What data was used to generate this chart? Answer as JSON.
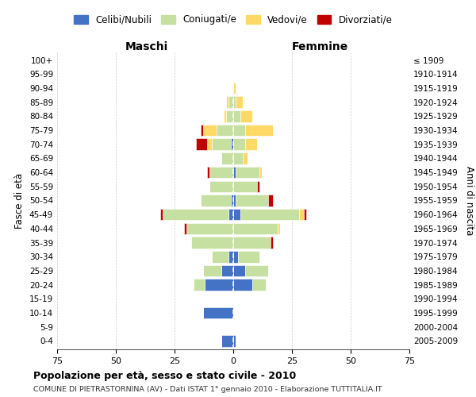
{
  "age_groups": [
    "0-4",
    "5-9",
    "10-14",
    "15-19",
    "20-24",
    "25-29",
    "30-34",
    "35-39",
    "40-44",
    "45-49",
    "50-54",
    "55-59",
    "60-64",
    "65-69",
    "70-74",
    "75-79",
    "80-84",
    "85-89",
    "90-94",
    "95-99",
    "100+"
  ],
  "birth_years": [
    "2005-2009",
    "2000-2004",
    "1995-1999",
    "1990-1994",
    "1985-1989",
    "1980-1984",
    "1975-1979",
    "1970-1974",
    "1965-1969",
    "1960-1964",
    "1955-1959",
    "1950-1954",
    "1945-1949",
    "1940-1944",
    "1935-1939",
    "1930-1934",
    "1925-1929",
    "1920-1924",
    "1915-1919",
    "1910-1914",
    "≤ 1909"
  ],
  "males": {
    "celibi": [
      5,
      0,
      13,
      0,
      12,
      5,
      2,
      0,
      0,
      2,
      1,
      0,
      0,
      0,
      1,
      0,
      0,
      0,
      0,
      0,
      0
    ],
    "coniugati": [
      0,
      0,
      0,
      0,
      5,
      8,
      7,
      18,
      20,
      28,
      13,
      10,
      10,
      5,
      8,
      7,
      3,
      2,
      0,
      0,
      0
    ],
    "vedovi": [
      0,
      0,
      0,
      0,
      0,
      0,
      0,
      0,
      0,
      0,
      0,
      0,
      0,
      0,
      2,
      6,
      1,
      1,
      0,
      0,
      0
    ],
    "divorziati": [
      0,
      0,
      0,
      0,
      0,
      0,
      0,
      0,
      1,
      1,
      0,
      0,
      1,
      0,
      5,
      1,
      0,
      0,
      0,
      0,
      0
    ]
  },
  "females": {
    "nubili": [
      1,
      0,
      0,
      0,
      8,
      5,
      2,
      0,
      0,
      3,
      1,
      0,
      1,
      0,
      0,
      0,
      0,
      0,
      0,
      0,
      0
    ],
    "coniugate": [
      0,
      0,
      0,
      0,
      6,
      10,
      9,
      16,
      19,
      25,
      14,
      10,
      10,
      4,
      5,
      5,
      3,
      1,
      0,
      0,
      0
    ],
    "vedove": [
      0,
      0,
      0,
      0,
      0,
      0,
      0,
      0,
      1,
      2,
      0,
      0,
      1,
      2,
      5,
      12,
      5,
      3,
      1,
      0,
      0
    ],
    "divorziate": [
      0,
      0,
      0,
      0,
      0,
      0,
      0,
      1,
      0,
      1,
      2,
      1,
      0,
      0,
      0,
      0,
      0,
      0,
      0,
      0,
      0
    ]
  },
  "colors": {
    "celibi": "#4472C4",
    "coniugati": "#C5E0A0",
    "vedovi": "#FFD966",
    "divorziati": "#C00000"
  },
  "xlim": 75,
  "title": "Popolazione per età, sesso e stato civile - 2010",
  "subtitle": "COMUNE DI PIETRASTORNINA (AV) - Dati ISTAT 1° gennaio 2010 - Elaborazione TUTTITALIA.IT",
  "ylabel": "Fasce di età",
  "ylabel_right": "Anni di nascita",
  "label_maschi": "Maschi",
  "label_femmine": "Femmine",
  "legend_labels": [
    "Celibi/Nubili",
    "Coniugati/e",
    "Vedovi/e",
    "Divorziati/e"
  ]
}
